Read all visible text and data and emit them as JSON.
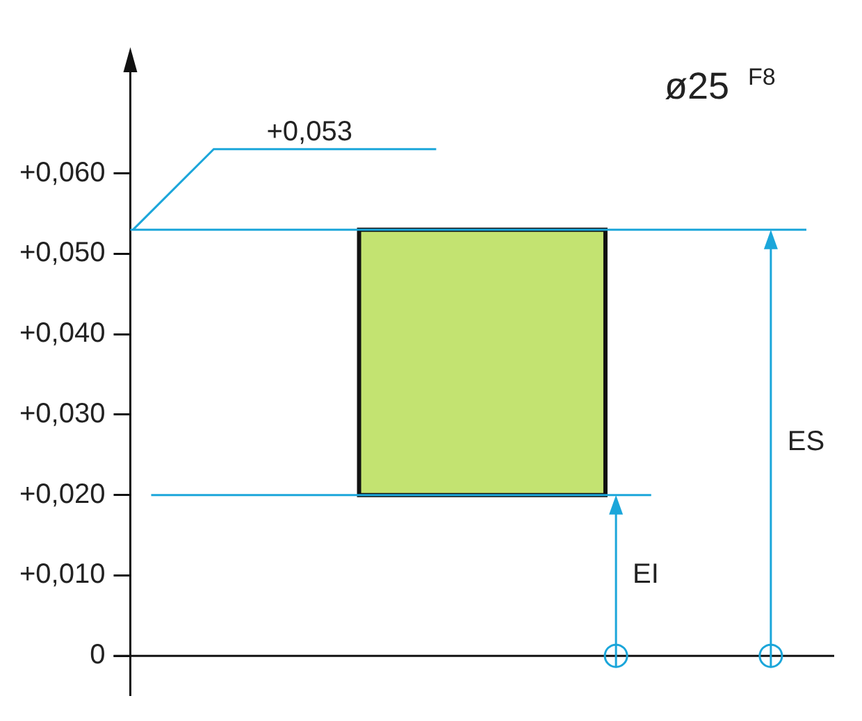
{
  "chart_data": {
    "type": "bar",
    "title": "ø25 $^{F8}$",
    "categories": [
      null,
      null,
      null
    ],
    "values": [
      null,
      0.033,
      null
    ],
    "base": [
      null,
      0.02,
      null
    ],
    "color": "#c3e371",
    "ylim": [
      -0.005,
      0.075
    ],
    "yticks": [
      {
        "value": 0,
        "label": "0"
      },
      {
        "value": 0.01,
        "label": "+0,010"
      },
      {
        "value": 0.02,
        "label": "+0,020"
      },
      {
        "value": 0.03,
        "label": "+0,030"
      },
      {
        "value": 0.04,
        "label": "+0,040"
      },
      {
        "value": 0.05,
        "label": "+0,050"
      },
      {
        "value": 0.06,
        "label": "+0,060"
      }
    ],
    "ref_lines": [
      {
        "axis": "y",
        "value": 0.053,
        "label": "+0,053",
        "color": "#1ba6da"
      },
      {
        "axis": "y",
        "value": 0.02,
        "color": "#1ba6da"
      }
    ],
    "annotations": [
      "ES",
      "EI"
    ],
    "grid": false,
    "legend": false
  }
}
